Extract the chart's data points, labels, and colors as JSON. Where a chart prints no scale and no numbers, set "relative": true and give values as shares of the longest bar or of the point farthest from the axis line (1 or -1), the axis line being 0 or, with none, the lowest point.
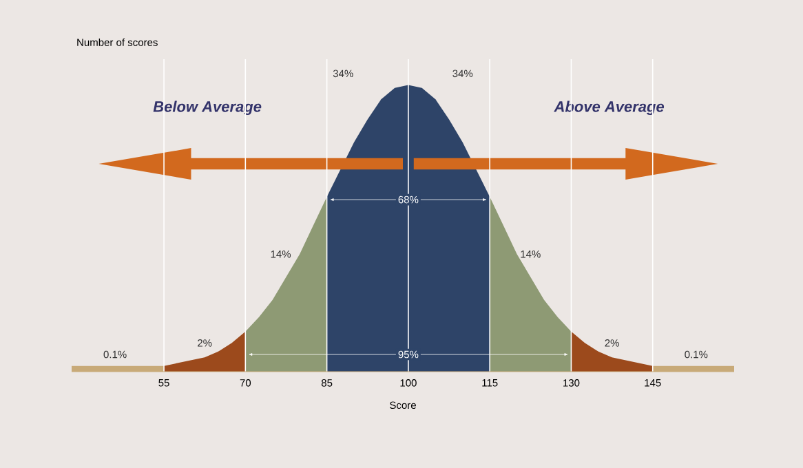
{
  "chart_data": {
    "type": "area",
    "relative": true,
    "xlabel": "Score",
    "ylabel": "Number of scores",
    "xlim": [
      38,
      160
    ],
    "xticks": [
      55,
      70,
      85,
      100,
      115,
      130,
      145
    ],
    "grid": "x",
    "series": [
      {
        "color": "#c8aa78",
        "x": [
          38,
          55
        ],
        "values": [
          0.02,
          0.02
        ]
      },
      {
        "color": "#9c4a1c",
        "x": [
          55,
          57.5,
          60,
          62.5,
          65,
          67.5,
          70
        ],
        "values": [
          0.02,
          0.03,
          0.04,
          0.05,
          0.07,
          0.1,
          0.14
        ]
      },
      {
        "color": "#8e9a74",
        "x": [
          70,
          72.5,
          75,
          77.5,
          80,
          82.5,
          85
        ],
        "values": [
          0.14,
          0.19,
          0.25,
          0.33,
          0.41,
          0.51,
          0.61
        ]
      },
      {
        "color": "#2e4468",
        "x": [
          85,
          90,
          92.5,
          95,
          97.5,
          100,
          102.5,
          105,
          107.5,
          110,
          115
        ],
        "values": [
          0.61,
          0.8,
          0.88,
          0.95,
          0.99,
          1,
          0.99,
          0.95,
          0.88,
          0.8,
          0.61
        ]
      },
      {
        "color": "#8e9a74",
        "x": [
          115,
          117.5,
          120,
          122.5,
          125,
          127.5,
          130
        ],
        "values": [
          0.61,
          0.51,
          0.41,
          0.33,
          0.25,
          0.19,
          0.14
        ]
      },
      {
        "color": "#9c4a1c",
        "x": [
          130,
          132.5,
          135,
          137.5,
          140,
          142.5,
          145
        ],
        "values": [
          0.14,
          0.1,
          0.07,
          0.05,
          0.04,
          0.03,
          0.02
        ]
      },
      {
        "color": "#c8aa78",
        "x": [
          145,
          160
        ],
        "values": [
          0.02,
          0.02
        ]
      }
    ],
    "annotations": [
      "Below Average",
      "Above Average",
      "34%",
      "34%",
      "68%",
      "14%",
      "14%",
      "2%",
      "2%",
      "0.1%",
      "0.1%",
      "95%"
    ]
  }
}
